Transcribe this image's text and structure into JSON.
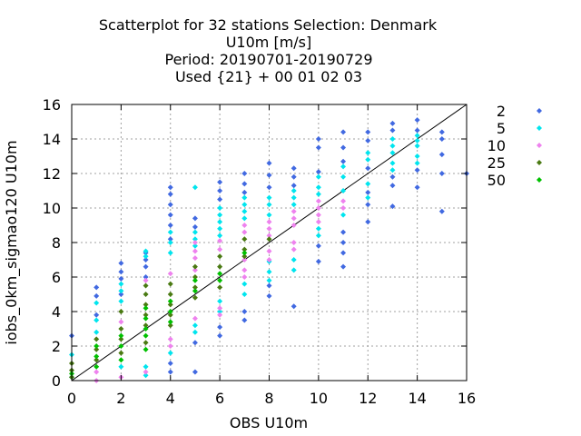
{
  "chart_data": {
    "type": "scatter",
    "title_lines": [
      "Scatterplot for   32 stations Selection: Denmark",
      "U10m [m/s]",
      "Period: 20190701-20190729",
      "Used {21} + 00 01 02 03"
    ],
    "xlabel": "OBS U10m",
    "ylabel": "iobs_0km_sigmao120 U10m",
    "xlim": [
      0,
      16
    ],
    "ylim": [
      0,
      16
    ],
    "xticks": [
      0,
      2,
      4,
      6,
      8,
      10,
      12,
      14,
      16
    ],
    "yticks": [
      0,
      2,
      4,
      6,
      8,
      10,
      12,
      14,
      16
    ],
    "grid": true,
    "legend_position": "right",
    "reference_line": "y=x",
    "series": [
      {
        "name": "2",
        "color": "#4169e1",
        "points": [
          {
            "x": 0,
            "y": 2.6
          },
          {
            "x": 1,
            "y": 5.4
          },
          {
            "x": 1,
            "y": 4.9
          },
          {
            "x": 1,
            "y": 3.8
          },
          {
            "x": 2,
            "y": 6.8
          },
          {
            "x": 2,
            "y": 6.3
          },
          {
            "x": 2,
            "y": 5.9
          },
          {
            "x": 2,
            "y": 5.0
          },
          {
            "x": 3,
            "y": 7.4
          },
          {
            "x": 3,
            "y": 7.0
          },
          {
            "x": 3,
            "y": 6.6
          },
          {
            "x": 3,
            "y": 6.0
          },
          {
            "x": 4,
            "y": 11.2
          },
          {
            "x": 4,
            "y": 10.8
          },
          {
            "x": 4,
            "y": 10.2
          },
          {
            "x": 4,
            "y": 9.6
          },
          {
            "x": 4,
            "y": 9.0
          },
          {
            "x": 4,
            "y": 8.2
          },
          {
            "x": 4,
            "y": 1.0
          },
          {
            "x": 4,
            "y": 0.5
          },
          {
            "x": 5,
            "y": 9.4
          },
          {
            "x": 5,
            "y": 8.9
          },
          {
            "x": 5,
            "y": 0.5
          },
          {
            "x": 5,
            "y": 2.2
          },
          {
            "x": 6,
            "y": 11.5
          },
          {
            "x": 6,
            "y": 11.0
          },
          {
            "x": 6,
            "y": 10.5
          },
          {
            "x": 6,
            "y": 2.6
          },
          {
            "x": 6,
            "y": 3.1
          },
          {
            "x": 7,
            "y": 12.0
          },
          {
            "x": 7,
            "y": 11.4
          },
          {
            "x": 7,
            "y": 10.9
          },
          {
            "x": 7,
            "y": 3.5
          },
          {
            "x": 7,
            "y": 4.0
          },
          {
            "x": 8,
            "y": 12.6
          },
          {
            "x": 8,
            "y": 11.9
          },
          {
            "x": 8,
            "y": 11.2
          },
          {
            "x": 8,
            "y": 4.9
          },
          {
            "x": 8,
            "y": 5.5
          },
          {
            "x": 9,
            "y": 12.3
          },
          {
            "x": 9,
            "y": 11.8
          },
          {
            "x": 9,
            "y": 11.3
          },
          {
            "x": 9,
            "y": 4.3
          },
          {
            "x": 10,
            "y": 14.0
          },
          {
            "x": 10,
            "y": 13.5
          },
          {
            "x": 10,
            "y": 12.1
          },
          {
            "x": 10,
            "y": 6.9
          },
          {
            "x": 10,
            "y": 7.8
          },
          {
            "x": 11,
            "y": 14.4
          },
          {
            "x": 11,
            "y": 13.5
          },
          {
            "x": 11,
            "y": 12.7
          },
          {
            "x": 11,
            "y": 6.6
          },
          {
            "x": 11,
            "y": 7.4
          },
          {
            "x": 11,
            "y": 8.0
          },
          {
            "x": 11,
            "y": 8.6
          },
          {
            "x": 12,
            "y": 14.4
          },
          {
            "x": 12,
            "y": 13.9
          },
          {
            "x": 12,
            "y": 12.3
          },
          {
            "x": 12,
            "y": 9.2
          },
          {
            "x": 12,
            "y": 10.2
          },
          {
            "x": 12,
            "y": 10.9
          },
          {
            "x": 13,
            "y": 14.9
          },
          {
            "x": 13,
            "y": 14.5
          },
          {
            "x": 13,
            "y": 11.8
          },
          {
            "x": 13,
            "y": 11.3
          },
          {
            "x": 13,
            "y": 10.1
          },
          {
            "x": 14,
            "y": 15.1
          },
          {
            "x": 14,
            "y": 14.5
          },
          {
            "x": 14,
            "y": 12.2
          },
          {
            "x": 14,
            "y": 11.2
          },
          {
            "x": 15,
            "y": 14.4
          },
          {
            "x": 15,
            "y": 14.0
          },
          {
            "x": 15,
            "y": 13.1
          },
          {
            "x": 15,
            "y": 12.0
          },
          {
            "x": 15,
            "y": 9.8
          },
          {
            "x": 16,
            "y": 12.0
          }
        ]
      },
      {
        "name": "5",
        "color": "#00e5ee",
        "points": [
          {
            "x": 0,
            "y": 1.5
          },
          {
            "x": 0,
            "y": 0.2
          },
          {
            "x": 1,
            "y": 4.5
          },
          {
            "x": 1,
            "y": 3.5
          },
          {
            "x": 1,
            "y": 2.8
          },
          {
            "x": 2,
            "y": 5.6
          },
          {
            "x": 2,
            "y": 5.2
          },
          {
            "x": 2,
            "y": 4.6
          },
          {
            "x": 2,
            "y": 0.8
          },
          {
            "x": 3,
            "y": 7.5
          },
          {
            "x": 3,
            "y": 7.2
          },
          {
            "x": 3,
            "y": 0.3
          },
          {
            "x": 3,
            "y": 0.8
          },
          {
            "x": 4,
            "y": 8.6
          },
          {
            "x": 4,
            "y": 8.0
          },
          {
            "x": 4,
            "y": 7.4
          },
          {
            "x": 4,
            "y": 1.6
          },
          {
            "x": 5,
            "y": 11.2
          },
          {
            "x": 5,
            "y": 8.6
          },
          {
            "x": 5,
            "y": 8.2
          },
          {
            "x": 5,
            "y": 7.8
          },
          {
            "x": 5,
            "y": 2.8
          },
          {
            "x": 5,
            "y": 3.2
          },
          {
            "x": 6,
            "y": 10.0
          },
          {
            "x": 6,
            "y": 9.6
          },
          {
            "x": 6,
            "y": 9.2
          },
          {
            "x": 6,
            "y": 8.8
          },
          {
            "x": 6,
            "y": 8.4
          },
          {
            "x": 6,
            "y": 4.0
          },
          {
            "x": 6,
            "y": 4.6
          },
          {
            "x": 7,
            "y": 10.6
          },
          {
            "x": 7,
            "y": 10.2
          },
          {
            "x": 7,
            "y": 9.8
          },
          {
            "x": 7,
            "y": 9.4
          },
          {
            "x": 7,
            "y": 5.0
          },
          {
            "x": 7,
            "y": 5.6
          },
          {
            "x": 8,
            "y": 10.6
          },
          {
            "x": 8,
            "y": 10.2
          },
          {
            "x": 8,
            "y": 9.6
          },
          {
            "x": 8,
            "y": 5.8
          },
          {
            "x": 8,
            "y": 6.3
          },
          {
            "x": 8,
            "y": 6.9
          },
          {
            "x": 9,
            "y": 11.0
          },
          {
            "x": 9,
            "y": 10.6
          },
          {
            "x": 9,
            "y": 10.2
          },
          {
            "x": 9,
            "y": 6.4
          },
          {
            "x": 9,
            "y": 7.0
          },
          {
            "x": 10,
            "y": 11.8
          },
          {
            "x": 10,
            "y": 11.2
          },
          {
            "x": 10,
            "y": 10.8
          },
          {
            "x": 10,
            "y": 8.4
          },
          {
            "x": 10,
            "y": 8.8
          },
          {
            "x": 11,
            "y": 12.4
          },
          {
            "x": 11,
            "y": 11.8
          },
          {
            "x": 11,
            "y": 11.0
          },
          {
            "x": 11,
            "y": 9.6
          },
          {
            "x": 12,
            "y": 13.2
          },
          {
            "x": 12,
            "y": 12.8
          },
          {
            "x": 12,
            "y": 11.4
          },
          {
            "x": 12,
            "y": 10.6
          },
          {
            "x": 13,
            "y": 14.0
          },
          {
            "x": 13,
            "y": 13.6
          },
          {
            "x": 13,
            "y": 13.2
          },
          {
            "x": 13,
            "y": 12.6
          },
          {
            "x": 13,
            "y": 12.2
          },
          {
            "x": 14,
            "y": 14.2
          },
          {
            "x": 14,
            "y": 13.9
          },
          {
            "x": 14,
            "y": 13.6
          },
          {
            "x": 14,
            "y": 13.0
          },
          {
            "x": 14,
            "y": 12.6
          }
        ]
      },
      {
        "name": "10",
        "color": "#ee82ee",
        "points": [
          {
            "x": 1,
            "y": 0.0
          },
          {
            "x": 1,
            "y": 0.5
          },
          {
            "x": 2,
            "y": 3.4
          },
          {
            "x": 2,
            "y": 0.2
          },
          {
            "x": 3,
            "y": 5.8
          },
          {
            "x": 3,
            "y": 0.5
          },
          {
            "x": 4,
            "y": 6.2
          },
          {
            "x": 4,
            "y": 2.0
          },
          {
            "x": 4,
            "y": 2.4
          },
          {
            "x": 5,
            "y": 8.0
          },
          {
            "x": 5,
            "y": 7.5
          },
          {
            "x": 5,
            "y": 7.1
          },
          {
            "x": 5,
            "y": 6.4
          },
          {
            "x": 5,
            "y": 3.6
          },
          {
            "x": 6,
            "y": 8.1
          },
          {
            "x": 6,
            "y": 7.6
          },
          {
            "x": 6,
            "y": 4.2
          },
          {
            "x": 6,
            "y": 3.8
          },
          {
            "x": 7,
            "y": 9.0
          },
          {
            "x": 7,
            "y": 8.6
          },
          {
            "x": 7,
            "y": 7.0
          },
          {
            "x": 7,
            "y": 6.4
          },
          {
            "x": 7,
            "y": 6.0
          },
          {
            "x": 8,
            "y": 9.2
          },
          {
            "x": 8,
            "y": 8.8
          },
          {
            "x": 8,
            "y": 8.4
          },
          {
            "x": 8,
            "y": 7.5
          },
          {
            "x": 8,
            "y": 7.0
          },
          {
            "x": 9,
            "y": 9.8
          },
          {
            "x": 9,
            "y": 9.4
          },
          {
            "x": 9,
            "y": 9.0
          },
          {
            "x": 9,
            "y": 8.0
          },
          {
            "x": 9,
            "y": 7.6
          },
          {
            "x": 10,
            "y": 10.4
          },
          {
            "x": 10,
            "y": 10.0
          },
          {
            "x": 10,
            "y": 9.6
          },
          {
            "x": 10,
            "y": 9.2
          },
          {
            "x": 11,
            "y": 10.4
          },
          {
            "x": 11,
            "y": 10.0
          }
        ]
      },
      {
        "name": "25",
        "color": "#4a7a12",
        "points": [
          {
            "x": 0,
            "y": 0.6
          },
          {
            "x": 0,
            "y": 1.0
          },
          {
            "x": 0,
            "y": 0.2
          },
          {
            "x": 1,
            "y": 2.4
          },
          {
            "x": 1,
            "y": 1.8
          },
          {
            "x": 1,
            "y": 1.2
          },
          {
            "x": 2,
            "y": 4.0
          },
          {
            "x": 2,
            "y": 3.0
          },
          {
            "x": 2,
            "y": 2.4
          },
          {
            "x": 2,
            "y": 1.6
          },
          {
            "x": 3,
            "y": 5.5
          },
          {
            "x": 3,
            "y": 5.0
          },
          {
            "x": 3,
            "y": 4.4
          },
          {
            "x": 3,
            "y": 3.8
          },
          {
            "x": 3,
            "y": 3.2
          },
          {
            "x": 3,
            "y": 2.2
          },
          {
            "x": 4,
            "y": 5.6
          },
          {
            "x": 4,
            "y": 5.0
          },
          {
            "x": 4,
            "y": 4.4
          },
          {
            "x": 4,
            "y": 3.8
          },
          {
            "x": 4,
            "y": 3.2
          },
          {
            "x": 5,
            "y": 6.6
          },
          {
            "x": 5,
            "y": 6.0
          },
          {
            "x": 5,
            "y": 5.4
          },
          {
            "x": 5,
            "y": 4.8
          },
          {
            "x": 6,
            "y": 7.2
          },
          {
            "x": 6,
            "y": 6.6
          },
          {
            "x": 6,
            "y": 5.4
          },
          {
            "x": 7,
            "y": 8.2
          },
          {
            "x": 7,
            "y": 7.6
          },
          {
            "x": 7,
            "y": 7.2
          },
          {
            "x": 8,
            "y": 8.2
          }
        ]
      },
      {
        "name": "50",
        "color": "#00c000",
        "points": [
          {
            "x": 0,
            "y": 0.4
          },
          {
            "x": 1,
            "y": 2.0
          },
          {
            "x": 1,
            "y": 1.4
          },
          {
            "x": 1,
            "y": 0.8
          },
          {
            "x": 2,
            "y": 2.6
          },
          {
            "x": 2,
            "y": 2.0
          },
          {
            "x": 2,
            "y": 1.2
          },
          {
            "x": 3,
            "y": 4.2
          },
          {
            "x": 3,
            "y": 3.6
          },
          {
            "x": 3,
            "y": 3.0
          },
          {
            "x": 3,
            "y": 2.6
          },
          {
            "x": 3,
            "y": 1.8
          },
          {
            "x": 4,
            "y": 4.6
          },
          {
            "x": 4,
            "y": 4.0
          },
          {
            "x": 4,
            "y": 3.4
          },
          {
            "x": 5,
            "y": 5.8
          },
          {
            "x": 5,
            "y": 5.2
          },
          {
            "x": 6,
            "y": 6.2
          },
          {
            "x": 6,
            "y": 5.8
          },
          {
            "x": 7,
            "y": 7.4
          }
        ]
      }
    ]
  }
}
